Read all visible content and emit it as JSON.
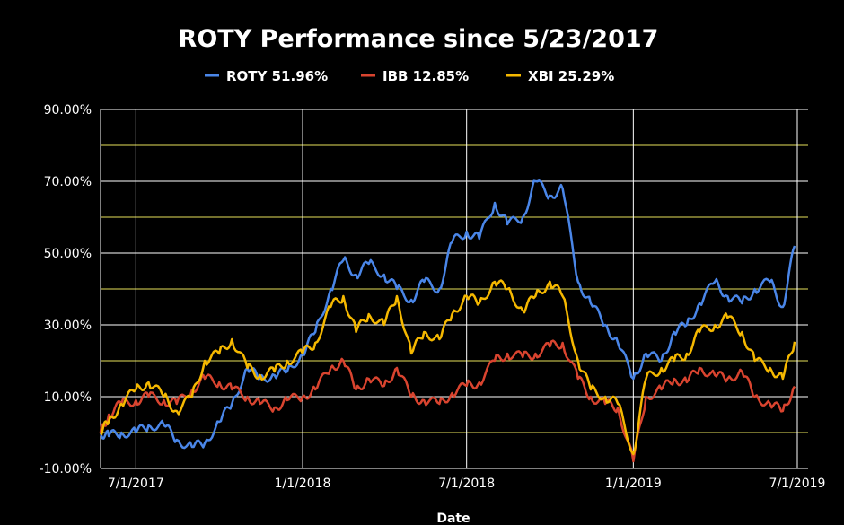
{
  "chart_data": {
    "type": "line",
    "title": "ROTY Performance since 5/23/2017",
    "xlabel": "Date",
    "ylabel": "",
    "ylim": [
      -10,
      90
    ],
    "y_ticks": [
      {
        "value": 90,
        "label": "90.00%"
      },
      {
        "value": 70,
        "label": "70.00%"
      },
      {
        "value": 50,
        "label": "50.00%"
      },
      {
        "value": 30,
        "label": "30.00%"
      },
      {
        "value": 10,
        "label": "10.00%"
      },
      {
        "value": -10,
        "label": "-10.00%"
      }
    ],
    "x_range": [
      "2017-05-23",
      "2019-07-01"
    ],
    "x_ticks": [
      {
        "date": "2017-07-01",
        "label": "7/1/2017"
      },
      {
        "date": "2018-01-01",
        "label": "1/1/2018"
      },
      {
        "date": "2018-07-01",
        "label": "7/1/2018"
      },
      {
        "date": "2019-01-01",
        "label": "1/1/2019"
      },
      {
        "date": "2019-07-01",
        "label": "7/1/2019"
      }
    ],
    "grid": true,
    "legend_position": "top",
    "x": [
      "2017-05-23",
      "2017-06-01",
      "2017-06-15",
      "2017-07-01",
      "2017-07-15",
      "2017-08-01",
      "2017-08-15",
      "2017-09-01",
      "2017-09-15",
      "2017-10-01",
      "2017-10-15",
      "2017-11-01",
      "2017-11-15",
      "2017-12-01",
      "2017-12-15",
      "2018-01-01",
      "2018-01-15",
      "2018-02-01",
      "2018-02-15",
      "2018-03-01",
      "2018-03-15",
      "2018-04-01",
      "2018-04-15",
      "2018-05-01",
      "2018-05-15",
      "2018-06-01",
      "2018-06-15",
      "2018-07-01",
      "2018-07-15",
      "2018-08-01",
      "2018-08-15",
      "2018-09-01",
      "2018-09-15",
      "2018-10-01",
      "2018-10-15",
      "2018-11-01",
      "2018-11-15",
      "2018-12-01",
      "2018-12-15",
      "2019-01-01",
      "2019-01-15",
      "2019-02-01",
      "2019-02-15",
      "2019-03-01",
      "2019-03-15",
      "2019-04-01",
      "2019-04-15",
      "2019-05-01",
      "2019-05-15",
      "2019-06-01",
      "2019-06-15",
      "2019-06-28"
    ],
    "series": [
      {
        "name": "ROTY 51.96%",
        "color": "#4a86e8",
        "values": [
          0,
          -1,
          0,
          0,
          2,
          2,
          -2,
          -4,
          -3,
          3,
          8,
          18,
          15,
          16,
          17,
          22,
          28,
          40,
          48,
          44,
          47,
          44,
          40,
          37,
          42,
          40,
          53,
          56,
          54,
          64,
          58,
          60,
          70,
          66,
          68,
          42,
          36,
          30,
          25,
          15,
          22,
          20,
          28,
          30,
          36,
          42,
          38,
          36,
          40,
          42,
          35,
          52
        ]
      },
      {
        "name": "IBB 12.85%",
        "color": "#d9442f",
        "values": [
          0,
          5,
          8,
          9,
          10,
          9,
          8,
          12,
          15,
          14,
          12,
          10,
          8,
          7,
          9,
          10,
          12,
          18,
          20,
          12,
          15,
          13,
          18,
          10,
          9,
          8,
          11,
          13,
          14,
          20,
          22,
          21,
          22,
          24,
          25,
          15,
          10,
          8,
          7,
          -8,
          10,
          12,
          15,
          14,
          18,
          16,
          15,
          17,
          10,
          8,
          6,
          12.85
        ]
      },
      {
        "name": "XBI 25.29%",
        "color": "#f5b800",
        "values": [
          0,
          3,
          8,
          12,
          14,
          10,
          6,
          10,
          20,
          22,
          26,
          18,
          16,
          17,
          20,
          22,
          25,
          35,
          38,
          28,
          33,
          30,
          38,
          22,
          28,
          26,
          33,
          38,
          36,
          42,
          40,
          34,
          38,
          42,
          38,
          20,
          12,
          10,
          8,
          -6,
          15,
          18,
          20,
          22,
          28,
          30,
          32,
          28,
          20,
          18,
          15,
          25.29
        ]
      }
    ]
  }
}
